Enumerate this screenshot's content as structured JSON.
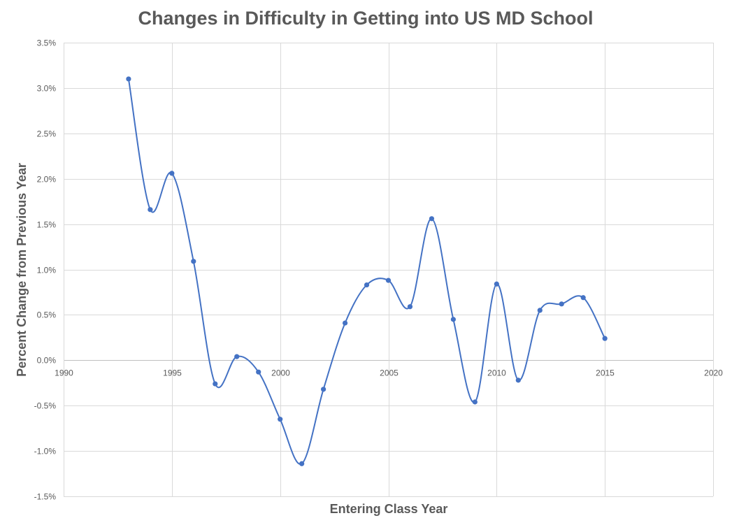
{
  "chart_data": {
    "type": "line",
    "title": "Changes in Difficulty in Getting into US MD School",
    "xlabel": "Entering Class Year",
    "ylabel": "Percent Change from Previous Year",
    "xlim": [
      1990,
      2020
    ],
    "ylim": [
      -1.5,
      3.5
    ],
    "x_ticks": [
      1990,
      1995,
      2000,
      2005,
      2010,
      2015,
      2020
    ],
    "x_tick_labels": [
      "1990",
      "1995",
      "2000",
      "2005",
      "2010",
      "2015",
      "2020"
    ],
    "y_ticks": [
      -1.5,
      -1.0,
      -0.5,
      0.0,
      0.5,
      1.0,
      1.5,
      2.0,
      2.5,
      3.0,
      3.5
    ],
    "y_tick_labels": [
      "-1.5%",
      "-1.0%",
      "-0.5%",
      "0.0%",
      "0.5%",
      "1.0%",
      "1.5%",
      "2.0%",
      "2.5%",
      "3.0%",
      "3.5%"
    ],
    "y_unit": "%",
    "grid": true,
    "legend": "none",
    "smoothed": true,
    "series": [
      {
        "color": "#4472c4",
        "x": [
          1993,
          1994,
          1995,
          1996,
          1997,
          1998,
          1999,
          2000,
          2001,
          2002,
          2003,
          2004,
          2005,
          2006,
          2007,
          2008,
          2009,
          2010,
          2011,
          2012,
          2013,
          2014,
          2015
        ],
        "values": [
          3.1,
          1.66,
          2.06,
          1.09,
          -0.26,
          0.04,
          -0.13,
          -0.65,
          -1.14,
          -0.32,
          0.41,
          0.83,
          0.88,
          0.59,
          1.56,
          0.45,
          -0.46,
          0.84,
          -0.22,
          0.55,
          0.62,
          0.69,
          0.24
        ]
      }
    ]
  }
}
